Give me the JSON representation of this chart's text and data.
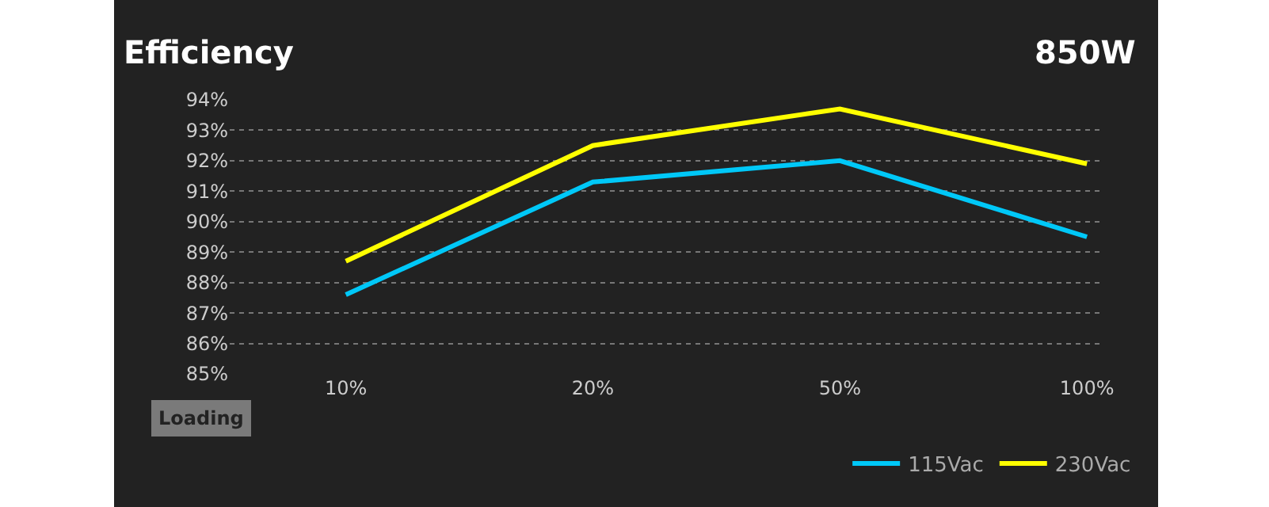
{
  "chart_data": {
    "type": "line",
    "title": "Efficiency",
    "subtitle": "850W",
    "xlabel": "Loading",
    "categories": [
      "10%",
      "20%",
      "50%",
      "100%"
    ],
    "series": [
      {
        "name": "115Vac",
        "color": "#00c8f8",
        "values": [
          87.6,
          91.3,
          92.0,
          89.5
        ]
      },
      {
        "name": "230Vac",
        "color": "#ffff00",
        "values": [
          88.7,
          92.5,
          93.7,
          91.9
        ]
      }
    ],
    "ylim": [
      85,
      94
    ],
    "yticks": [
      {
        "value": 85,
        "label": "85%"
      },
      {
        "value": 86,
        "label": "86%"
      },
      {
        "value": 87,
        "label": "87%"
      },
      {
        "value": 88,
        "label": "88%"
      },
      {
        "value": 89,
        "label": "89%"
      },
      {
        "value": 90,
        "label": "90%"
      },
      {
        "value": 91,
        "label": "91%"
      },
      {
        "value": 92,
        "label": "92%"
      },
      {
        "value": 93,
        "label": "93%"
      },
      {
        "value": 94,
        "label": "94%"
      }
    ],
    "grid": "y",
    "legend": "bottom right",
    "marker": "none",
    "line_style": "solid"
  }
}
